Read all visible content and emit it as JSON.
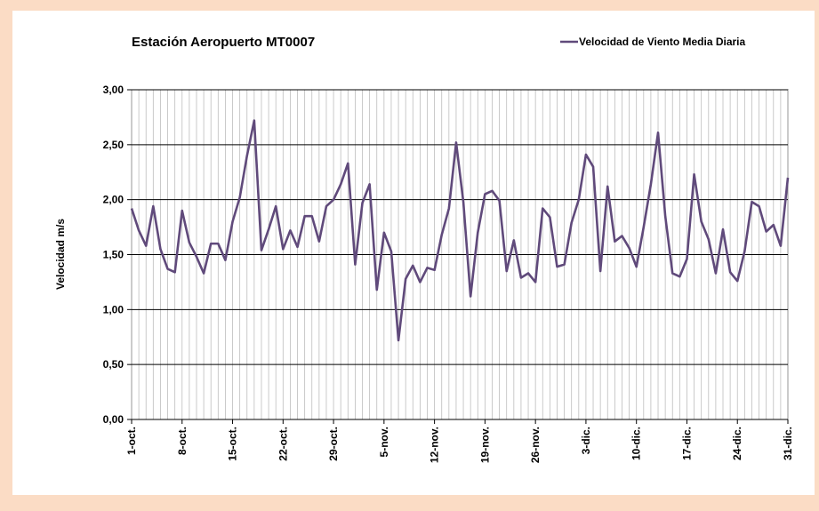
{
  "chart_data": {
    "type": "line",
    "title": "Estación Aeropuerto MT0007",
    "y_label": "Velocidad m/s",
    "categories": [
      "1-oct.",
      null,
      null,
      null,
      null,
      null,
      null,
      "8-oct.",
      null,
      null,
      null,
      null,
      null,
      null,
      "15-oct.",
      null,
      null,
      null,
      null,
      null,
      null,
      "22-oct.",
      null,
      null,
      null,
      null,
      null,
      null,
      "29-oct.",
      null,
      null,
      null,
      null,
      null,
      null,
      "5-nov.",
      null,
      null,
      null,
      null,
      null,
      null,
      "12-nov.",
      null,
      null,
      null,
      null,
      null,
      null,
      "19-nov.",
      null,
      null,
      null,
      null,
      null,
      null,
      "26-nov.",
      null,
      null,
      null,
      null,
      null,
      null,
      "3-dic.",
      null,
      null,
      null,
      null,
      null,
      null,
      "10-dic.",
      null,
      null,
      null,
      null,
      null,
      null,
      "17-dic.",
      null,
      null,
      null,
      null,
      null,
      null,
      "24-dic.",
      null,
      null,
      null,
      null,
      null,
      null,
      "31-dic."
    ],
    "series": [
      {
        "name": "Velocidad de Viento Media Diaria",
        "color": "#604a7b",
        "values": [
          1.92,
          1.72,
          1.58,
          1.94,
          1.55,
          1.37,
          1.34,
          1.9,
          1.61,
          1.48,
          1.33,
          1.6,
          1.6,
          1.45,
          1.8,
          2.02,
          2.4,
          2.72,
          1.54,
          1.73,
          1.94,
          1.55,
          1.72,
          1.57,
          1.85,
          1.85,
          1.62,
          1.94,
          2.0,
          2.14,
          2.33,
          1.41,
          1.97,
          2.14,
          1.18,
          1.7,
          1.53,
          0.72,
          1.28,
          1.4,
          1.25,
          1.38,
          1.36,
          1.68,
          1.92,
          2.52,
          1.98,
          1.12,
          1.7,
          2.05,
          2.08,
          1.99,
          1.35,
          1.63,
          1.29,
          1.33,
          1.25,
          1.92,
          1.84,
          1.39,
          1.41,
          1.79,
          2.0,
          2.41,
          2.3,
          1.35,
          2.12,
          1.62,
          1.67,
          1.56,
          1.39,
          1.75,
          2.14,
          2.61,
          1.85,
          1.33,
          1.3,
          1.46,
          2.23,
          1.8,
          1.64,
          1.33,
          1.73,
          1.34,
          1.26,
          1.53,
          1.98,
          1.94,
          1.71,
          1.77,
          1.58,
          2.2
        ]
      }
    ],
    "ylim": [
      0,
      3
    ],
    "yticks": [
      {
        "value": 0,
        "label": "0,00"
      },
      {
        "value": 0.5,
        "label": "0,50"
      },
      {
        "value": 1,
        "label": "1,00"
      },
      {
        "value": 1.5,
        "label": "1,50"
      },
      {
        "value": 2,
        "label": "2,00"
      },
      {
        "value": 2.5,
        "label": "2,50"
      },
      {
        "value": 3,
        "label": "3,00"
      }
    ],
    "grid": true,
    "legend": "top-right"
  }
}
